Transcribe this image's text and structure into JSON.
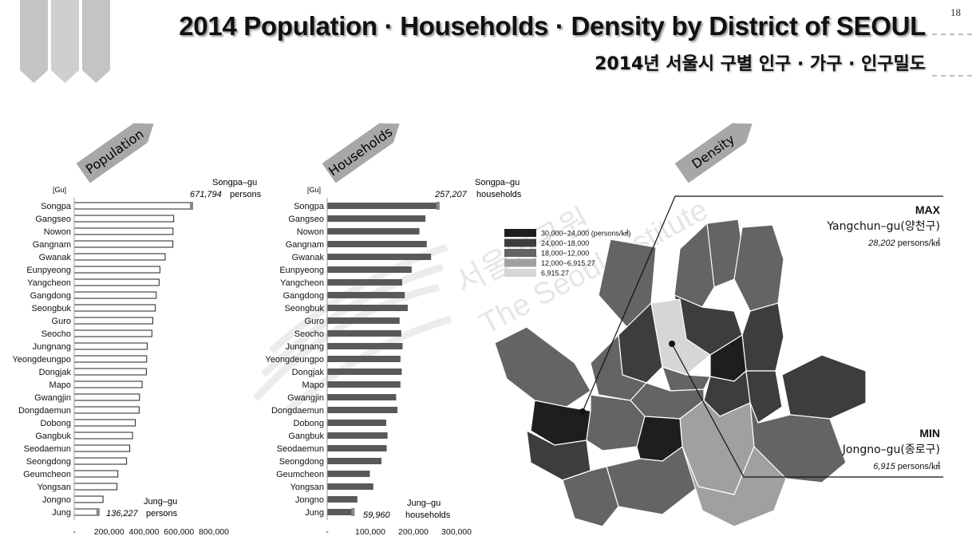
{
  "page_number": "18",
  "title_en": "2014 Population · Households · Density by District of SEOUL",
  "title_kr": "2014년 서울시 구별 인구 · 가구 · 인구밀도",
  "section_labels": {
    "population": "Population",
    "households": "Households",
    "density": "Density"
  },
  "watermark": {
    "kr": "서울연구원",
    "en": "The Seoul Institute"
  },
  "chart_data": [
    {
      "type": "bar",
      "orientation": "horizontal",
      "title": "Population",
      "category_axis_label": "[Gu]",
      "categories": [
        "Songpa",
        "Gangseo",
        "Nowon",
        "Gangnam",
        "Gwanak",
        "Eunpyeong",
        "Yangcheon",
        "Gangdong",
        "Seongbuk",
        "Guro",
        "Seocho",
        "Jungnang",
        "Yeongdeungpo",
        "Dongjak",
        "Mapo",
        "Gwangjin",
        "Dongdaemun",
        "Dobong",
        "Gangbuk",
        "Seodaemun",
        "Seongdong",
        "Geumcheon",
        "Yongsan",
        "Jongno",
        "Jung"
      ],
      "values": [
        671794,
        570000,
        566000,
        565000,
        521000,
        491000,
        486000,
        470000,
        465000,
        450000,
        445000,
        418000,
        415000,
        413000,
        389000,
        374000,
        372000,
        350000,
        334000,
        318000,
        300000,
        250000,
        245000,
        165000,
        136227
      ],
      "xlim": [
        0,
        800000
      ],
      "x_tick_labels": [
        "-",
        "200,000",
        "400,000",
        "600,000",
        "800,000"
      ],
      "bar_style": "white fill, black outline",
      "annotations": {
        "max": {
          "label": "Songpa–gu",
          "value": "671,794",
          "unit": "persons"
        },
        "min": {
          "label": "Jung–gu",
          "value": "136,227",
          "unit": "persons"
        }
      }
    },
    {
      "type": "bar",
      "orientation": "horizontal",
      "title": "Households",
      "category_axis_label": "[Gu]",
      "categories": [
        "Songpa",
        "Gangseo",
        "Nowon",
        "Gangnam",
        "Gwanak",
        "Eunpyeong",
        "Yangcheon",
        "Gangdong",
        "Seongbuk",
        "Guro",
        "Seocho",
        "Jungnang",
        "Yeongdeungpo",
        "Dongjak",
        "Mapo",
        "Gwangjin",
        "Dongdaemun",
        "Dobong",
        "Gangbuk",
        "Seodaemun",
        "Seongdong",
        "Geumcheon",
        "Yongsan",
        "Jongno",
        "Jung"
      ],
      "values": [
        257207,
        228000,
        214000,
        231000,
        241000,
        196000,
        174000,
        180000,
        187000,
        168000,
        172000,
        175000,
        170000,
        173000,
        170000,
        160000,
        163000,
        137000,
        140000,
        138000,
        126000,
        99000,
        107000,
        70000,
        59960
      ],
      "xlim": [
        0,
        300000
      ],
      "x_tick_labels": [
        "-",
        "100,000",
        "200,000",
        "300,000"
      ],
      "bar_style": "dark gray fill",
      "annotations": {
        "max": {
          "label": "Songpa–gu",
          "value": "257,207",
          "unit": "households"
        },
        "min": {
          "label": "Jung–gu",
          "value": "59,960",
          "unit": "households"
        }
      }
    },
    {
      "type": "choropleth",
      "title": "Density",
      "legend": [
        {
          "label": "30,000~24,000 (persons/㎢)",
          "color": "#1e1e1e"
        },
        {
          "label": "24,000~18,000",
          "color": "#3d3d3d"
        },
        {
          "label": "18,000~12,000",
          "color": "#646464"
        },
        {
          "label": "12,000~6,915.27",
          "color": "#a0a0a0"
        },
        {
          "label": "6,915.27",
          "color": "#d6d6d6"
        }
      ],
      "annotations": {
        "max": {
          "tag": "MAX",
          "label": "Yangchun–gu(양천구)",
          "value": "28,202",
          "unit": "persons/㎢"
        },
        "min": {
          "tag": "MIN",
          "label": "Jongno–gu(종로구)",
          "value": "6,915",
          "unit": "persons/㎢"
        }
      }
    }
  ]
}
